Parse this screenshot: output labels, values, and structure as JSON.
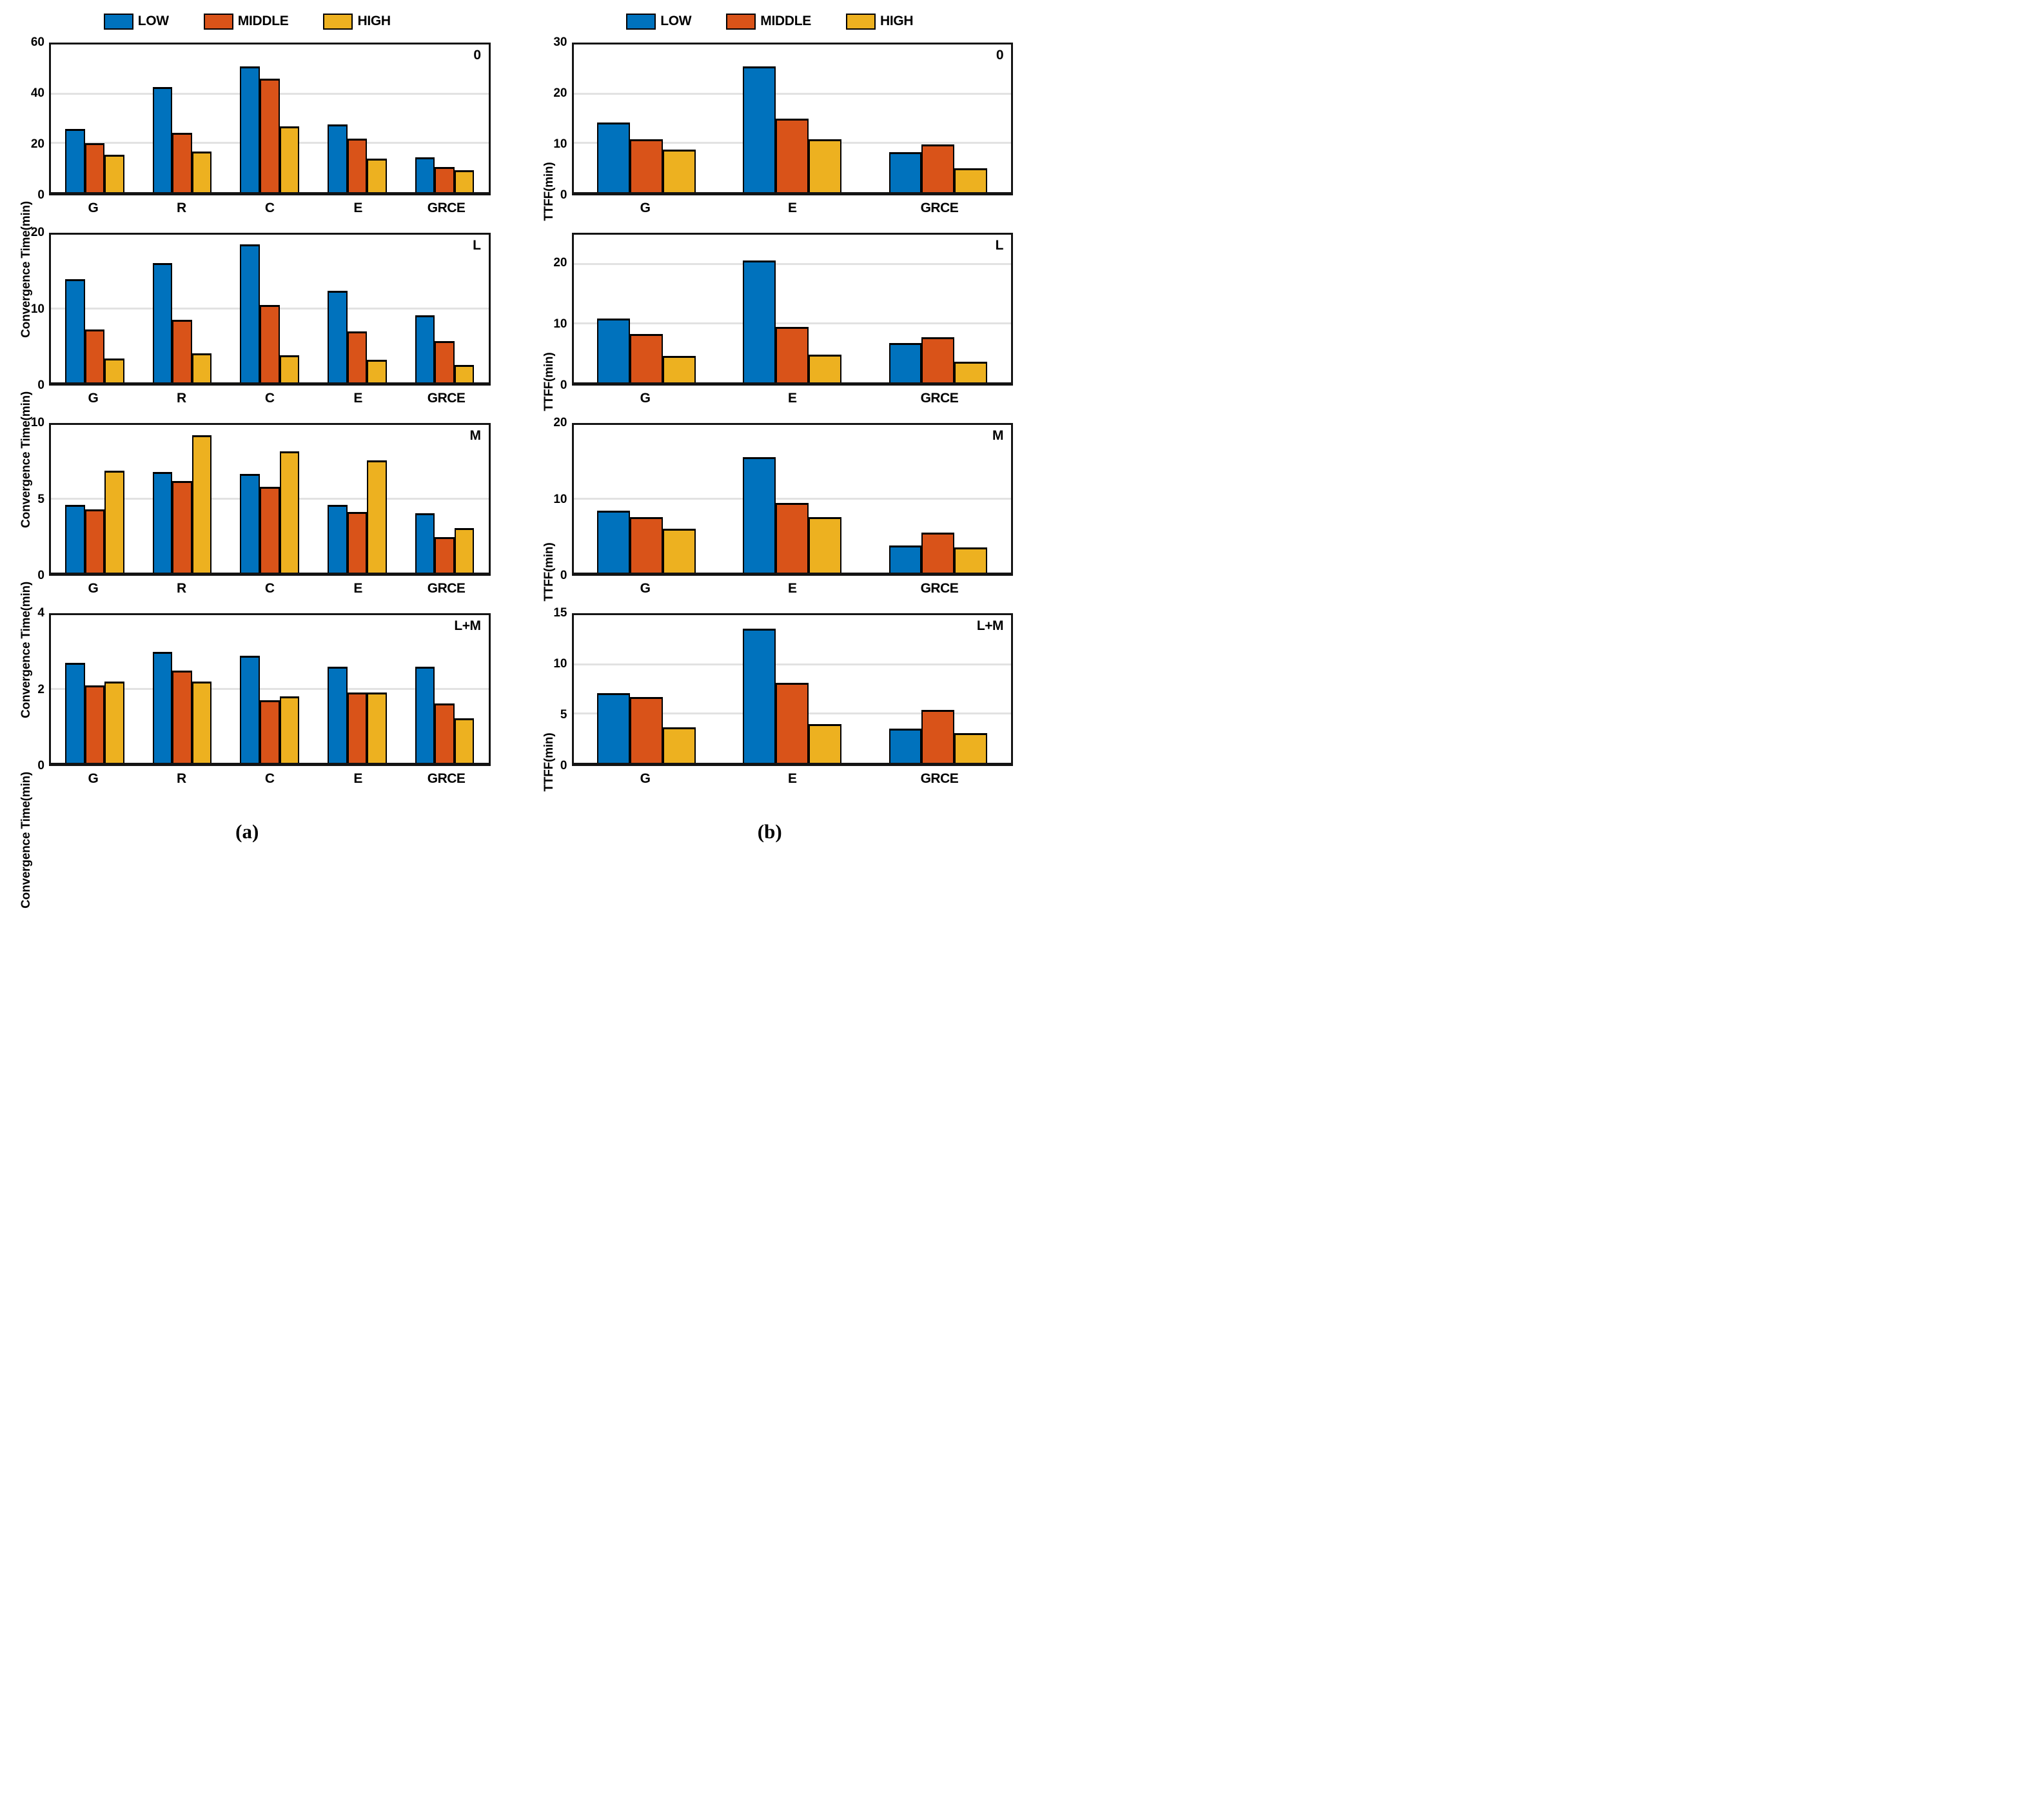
{
  "legend": {
    "entries": [
      {
        "label": "LOW",
        "color": "#0072BD"
      },
      {
        "label": "MIDDLE",
        "color": "#D95319"
      },
      {
        "label": "HIGH",
        "color": "#EDB120"
      }
    ]
  },
  "captions": {
    "a": "(a)",
    "b": "(b)"
  },
  "chart_data": [
    {
      "type": "bar",
      "column": "a",
      "panel_label": "0",
      "ylabel": "Convergence Time(min)",
      "categories": [
        "G",
        "R",
        "C",
        "E",
        "GRCE"
      ],
      "ylim": [
        0,
        60
      ],
      "yticks": [
        0,
        20,
        40,
        60
      ],
      "grid": "on",
      "legend_position": "top",
      "series": [
        {
          "name": "LOW",
          "values": [
            25.7,
            42.7,
            51.1,
            27.5,
            14.2
          ]
        },
        {
          "name": "MIDDLE",
          "values": [
            19.9,
            24.0,
            46.1,
            21.8,
            10.3
          ]
        },
        {
          "name": "HIGH",
          "values": [
            15.3,
            16.5,
            26.8,
            13.7,
            8.9
          ]
        }
      ]
    },
    {
      "type": "bar",
      "column": "a",
      "panel_label": "L",
      "ylabel": "Convergence Time(min)",
      "categories": [
        "G",
        "R",
        "C",
        "E",
        "GRCE"
      ],
      "ylim": [
        0,
        20
      ],
      "yticks": [
        0,
        10,
        20
      ],
      "grid": "on",
      "series": [
        {
          "name": "LOW",
          "values": [
            14.0,
            16.2,
            18.7,
            12.4,
            9.1
          ]
        },
        {
          "name": "MIDDLE",
          "values": [
            7.2,
            8.5,
            10.5,
            6.9,
            5.6
          ]
        },
        {
          "name": "HIGH",
          "values": [
            3.2,
            3.9,
            3.7,
            3.1,
            2.4
          ]
        }
      ]
    },
    {
      "type": "bar",
      "column": "a",
      "panel_label": "M",
      "ylabel": "Convergence Time(min)",
      "categories": [
        "G",
        "R",
        "C",
        "E",
        "GRCE"
      ],
      "ylim": [
        0,
        10
      ],
      "yticks": [
        0,
        5,
        10
      ],
      "grid": "on",
      "series": [
        {
          "name": "LOW",
          "values": [
            4.6,
            6.8,
            6.7,
            4.6,
            4.0
          ]
        },
        {
          "name": "MIDDLE",
          "values": [
            4.3,
            6.2,
            5.8,
            4.1,
            2.4
          ]
        },
        {
          "name": "HIGH",
          "values": [
            6.9,
            9.3,
            8.2,
            7.6,
            3.0
          ]
        }
      ]
    },
    {
      "type": "bar",
      "column": "a",
      "panel_label": "L+M",
      "ylabel": "Convergence Time(min)",
      "categories": [
        "G",
        "R",
        "C",
        "E",
        "GRCE"
      ],
      "ylim": [
        0,
        4
      ],
      "yticks": [
        0,
        2,
        4
      ],
      "grid": "on",
      "series": [
        {
          "name": "LOW",
          "values": [
            2.7,
            3.0,
            2.9,
            2.6,
            2.6
          ]
        },
        {
          "name": "MIDDLE",
          "values": [
            2.1,
            2.5,
            1.7,
            1.9,
            1.6
          ]
        },
        {
          "name": "HIGH",
          "values": [
            2.2,
            2.2,
            1.8,
            1.9,
            1.2
          ]
        }
      ]
    },
    {
      "type": "bar",
      "column": "b",
      "panel_label": "0",
      "ylabel": "TTFF(min)",
      "categories": [
        "G",
        "E",
        "GRCE"
      ],
      "ylim": [
        0,
        30
      ],
      "yticks": [
        0,
        10,
        20,
        30
      ],
      "grid": "on",
      "legend_position": "top",
      "series": [
        {
          "name": "LOW",
          "values": [
            14.2,
            25.6,
            8.1
          ]
        },
        {
          "name": "MIDDLE",
          "values": [
            10.7,
            15.0,
            9.7
          ]
        },
        {
          "name": "HIGH",
          "values": [
            8.7,
            10.8,
            4.8
          ]
        }
      ]
    },
    {
      "type": "bar",
      "column": "b",
      "panel_label": "L",
      "ylabel": "TTFF(min)",
      "categories": [
        "G",
        "E",
        "GRCE"
      ],
      "ylim": [
        0,
        25
      ],
      "yticks": [
        0,
        10,
        20
      ],
      "grid": "on",
      "series": [
        {
          "name": "LOW",
          "values": [
            10.8,
            20.6,
            6.7
          ]
        },
        {
          "name": "MIDDLE",
          "values": [
            8.2,
            9.4,
            7.6
          ]
        },
        {
          "name": "HIGH",
          "values": [
            4.5,
            4.7,
            3.5
          ]
        }
      ]
    },
    {
      "type": "bar",
      "column": "b",
      "panel_label": "M",
      "ylabel": "TTFF(min)",
      "categories": [
        "G",
        "E",
        "GRCE"
      ],
      "ylim": [
        0,
        20
      ],
      "yticks": [
        0,
        10,
        20
      ],
      "grid": "on",
      "series": [
        {
          "name": "LOW",
          "values": [
            8.4,
            15.6,
            3.7
          ]
        },
        {
          "name": "MIDDLE",
          "values": [
            7.5,
            9.4,
            5.4
          ]
        },
        {
          "name": "HIGH",
          "values": [
            5.9,
            7.5,
            3.4
          ]
        }
      ]
    },
    {
      "type": "bar",
      "column": "b",
      "panel_label": "L+M",
      "ylabel": "TTFF(min)",
      "categories": [
        "G",
        "E",
        "GRCE"
      ],
      "ylim": [
        0,
        15
      ],
      "yticks": [
        0,
        5,
        10,
        15
      ],
      "grid": "on",
      "series": [
        {
          "name": "LOW",
          "values": [
            7.1,
            13.6,
            3.5
          ]
        },
        {
          "name": "MIDDLE",
          "values": [
            6.7,
            8.1,
            5.4
          ]
        },
        {
          "name": "HIGH",
          "values": [
            3.6,
            3.9,
            3.0
          ]
        }
      ]
    }
  ]
}
